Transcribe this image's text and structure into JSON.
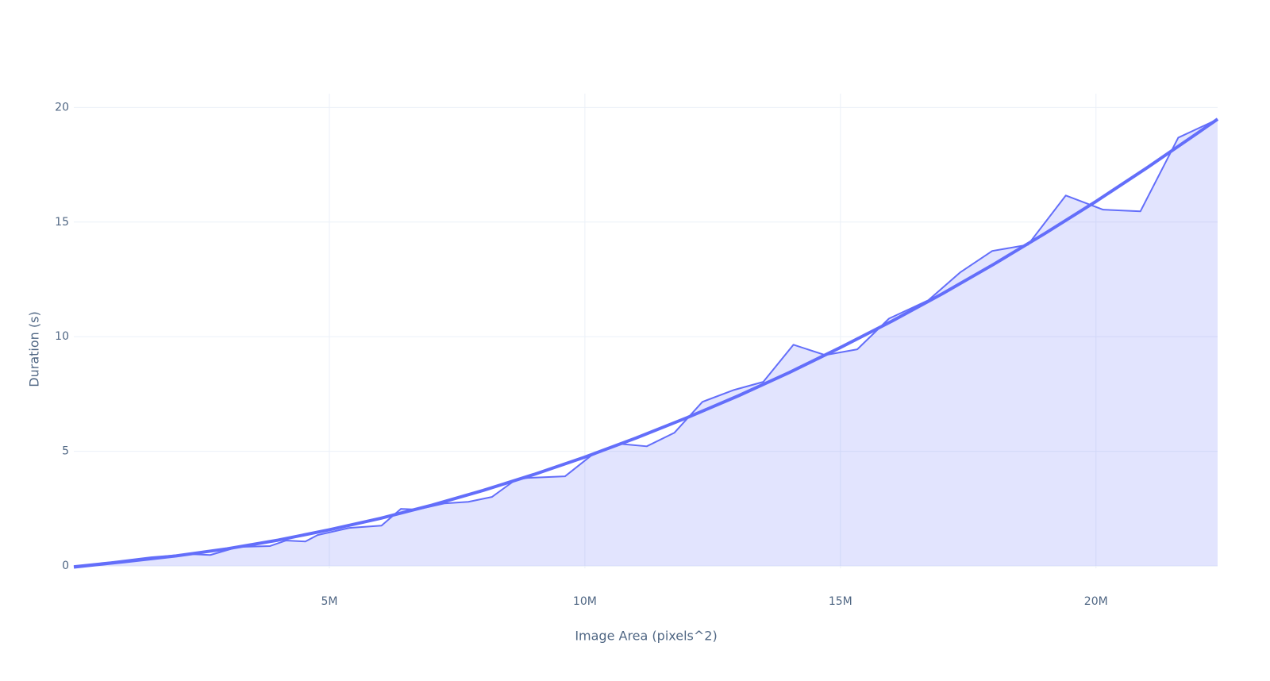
{
  "chart_data": {
    "type": "line",
    "x_label": "Image Area (pixels^2)",
    "y_label": "Duration (s)",
    "xlim": [
      0,
      22380000
    ],
    "ylim": [
      -0.1,
      20.6
    ],
    "xticks": [
      {
        "value": 5000000,
        "label": "5M"
      },
      {
        "value": 10000000,
        "label": "10M"
      },
      {
        "value": 15000000,
        "label": "15M"
      },
      {
        "value": 20000000,
        "label": "20M"
      }
    ],
    "yticks": [
      0,
      5,
      10,
      15,
      20
    ],
    "grid": true,
    "series": [
      {
        "color": "#636efa",
        "fill": "tozeroy",
        "fill_color": "rgba(99,110,250,0.19)",
        "line_width": 2,
        "x": [
          0,
          730000,
          1510000,
          2280000,
          2670000,
          3210000,
          3840000,
          4150000,
          4530000,
          4770000,
          5390000,
          6020000,
          6400000,
          6710000,
          7250000,
          7720000,
          8180000,
          8650000,
          8880000,
          9610000,
          10120000,
          10670000,
          11210000,
          11750000,
          12300000,
          12920000,
          13490000,
          14080000,
          14700000,
          15330000,
          15950000,
          16720000,
          17340000,
          17970000,
          18670000,
          19410000,
          20140000,
          20870000,
          21610000,
          22380000
        ],
        "values": [
          0,
          0.17,
          0.38,
          0.52,
          0.48,
          0.83,
          0.87,
          1.11,
          1.07,
          1.35,
          1.66,
          1.76,
          2.49,
          2.46,
          2.73,
          2.8,
          3.01,
          3.77,
          3.84,
          3.91,
          4.81,
          5.33,
          5.22,
          5.81,
          7.16,
          7.68,
          8.03,
          9.65,
          9.2,
          9.45,
          10.79,
          11.59,
          12.8,
          13.74,
          14.01,
          16.16,
          15.54,
          15.47,
          18.68,
          19.48
        ]
      },
      {
        "color": "#636efa",
        "line_width": 4,
        "x": [
          0,
          1000000,
          2000000,
          3000000,
          4000000,
          5000000,
          6000000,
          7000000,
          8000000,
          9000000,
          10000000,
          11000000,
          12000000,
          13000000,
          14000000,
          15000000,
          16000000,
          17000000,
          18000000,
          19000000,
          20000000,
          21000000,
          22000000,
          22380000
        ],
        "values": [
          -0.05,
          0.19,
          0.44,
          0.75,
          1.13,
          1.58,
          2.08,
          2.65,
          3.29,
          3.99,
          4.75,
          5.58,
          6.47,
          7.42,
          8.44,
          9.53,
          10.67,
          11.88,
          13.16,
          14.5,
          15.9,
          17.37,
          18.9,
          19.49
        ]
      }
    ]
  }
}
